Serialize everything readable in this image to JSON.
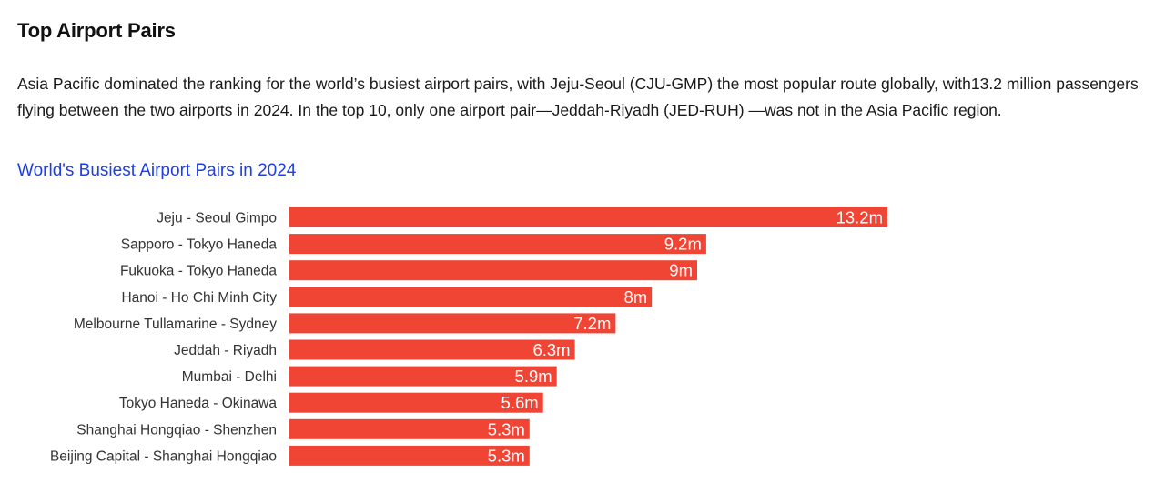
{
  "section": {
    "title": "Top Airport Pairs",
    "intro": "Asia Pacific dominated the ranking for the world’s busiest airport pairs, with Jeju-Seoul (CJU-GMP) the most popular route globally, with13.2 million passengers flying between the two airports in 2024. In the top 10, only one airport pair—Jeddah-Riyadh (JED-RUH) —was not in the Asia Pacific region."
  },
  "chart_data": {
    "type": "bar",
    "orientation": "horizontal",
    "title": "World's Busiest Airport Pairs in 2024",
    "categories": [
      "Jeju - Seoul Gimpo",
      "Sapporo - Tokyo Haneda",
      "Fukuoka - Tokyo Haneda",
      "Hanoi - Ho Chi Minh City",
      "Melbourne Tullamarine - Sydney",
      "Jeddah - Riyadh",
      "Mumbai - Delhi",
      "Tokyo Haneda - Okinawa",
      "Shanghai Hongqiao - Shenzhen",
      "Beijing Capital - Shanghai Hongqiao"
    ],
    "values": [
      13.2,
      9.2,
      9,
      8,
      7.2,
      6.3,
      5.9,
      5.6,
      5.3,
      5.3
    ],
    "value_labels": [
      "13.2m",
      "9.2m",
      "9m",
      "8m",
      "7.2m",
      "6.3m",
      "5.9m",
      "5.6m",
      "5.3m",
      "5.3m"
    ],
    "xlim": [
      0,
      13.2
    ],
    "grid": false,
    "legend": "none",
    "bar_color": "#f04434"
  }
}
